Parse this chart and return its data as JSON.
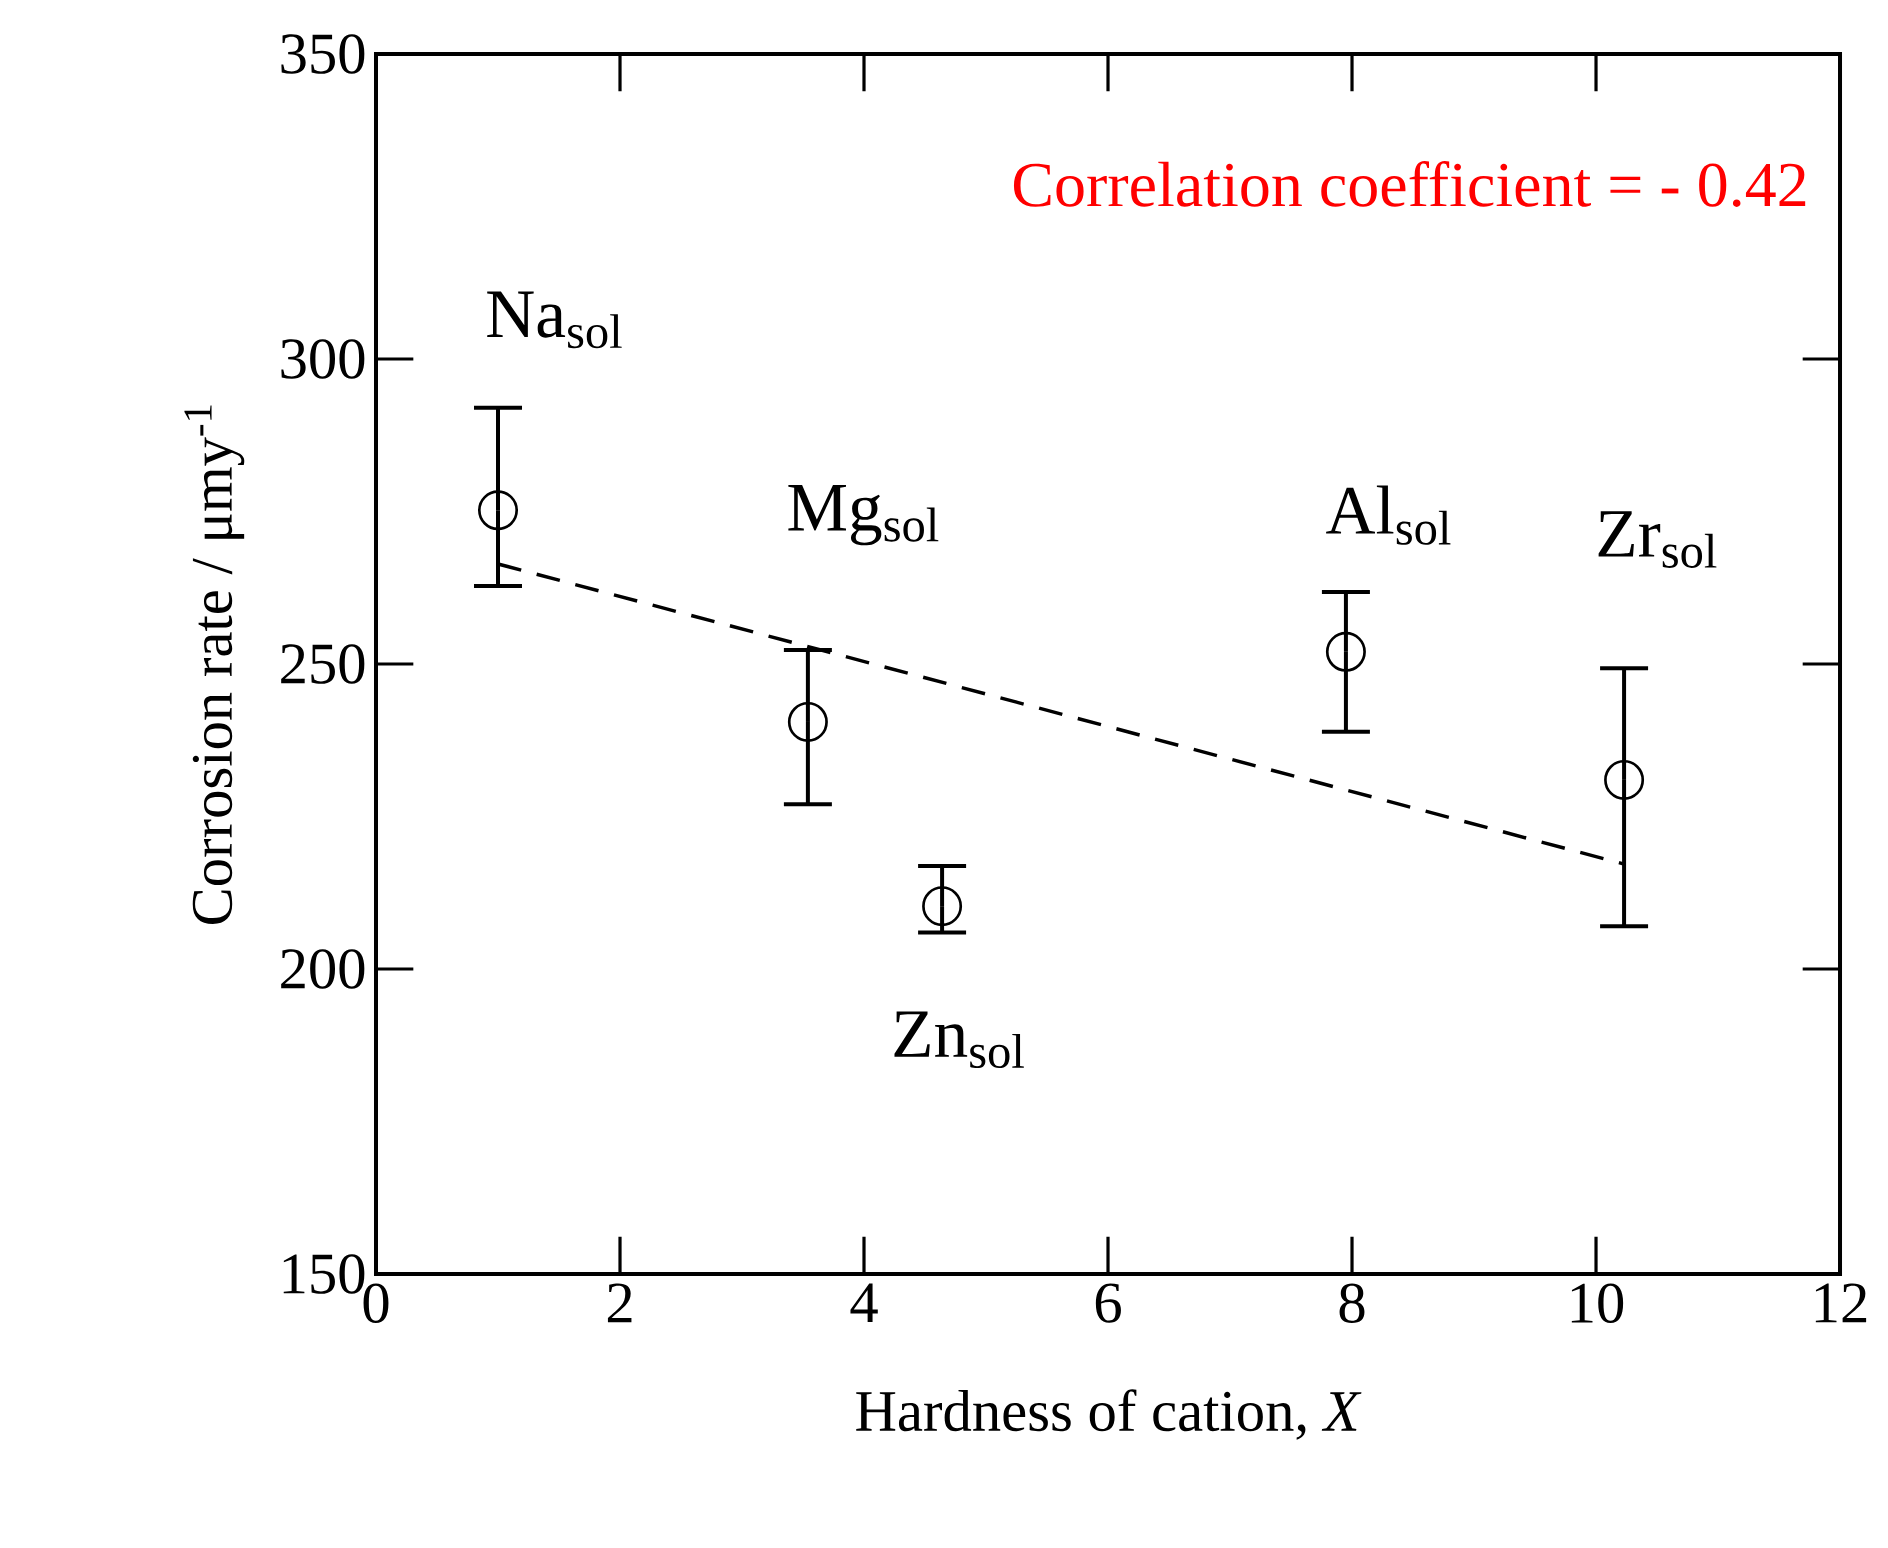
{
  "chart_data": {
    "type": "scatter",
    "xlabel": "Hardness of cation, *X*",
    "ylabel": "Corrosion rate / μmy$^{-1}$",
    "xlim": [
      0,
      12
    ],
    "xticks": [
      0,
      2,
      4,
      6,
      8,
      10,
      12
    ],
    "ylim": [
      150,
      350
    ],
    "yticks": [
      150,
      200,
      250,
      300,
      350
    ],
    "grid": false,
    "marker": "circle",
    "series": [
      {
        "type": "scatter",
        "color": "#000000",
        "x": [
          1.0,
          3.54,
          4.64,
          7.95,
          10.23
        ],
        "values": [
          275.2,
          240.5,
          210.3,
          252.0,
          231.0
        ],
        "errors": [
          [
            262.8,
            292.0
          ],
          [
            227.0,
            252.3
          ],
          [
            206.0,
            216.9
          ],
          [
            238.9,
            261.8
          ],
          [
            207.0,
            249.3
          ]
        ]
      },
      {
        "type": "line",
        "color": "#000000",
        "marker": "none",
        "line_style": "dashed",
        "x": [
          1.0,
          10.23
        ],
        "values": [
          266.4,
          217.2
        ]
      }
    ],
    "annotations": [
      "Correlation coefficient = - 0.42",
      "Na$_{sol}$",
      "Mg$_{sol}$",
      "Zn$_{sol}$",
      "Al$_{sol}$",
      "Zr$_{sol}$"
    ]
  }
}
